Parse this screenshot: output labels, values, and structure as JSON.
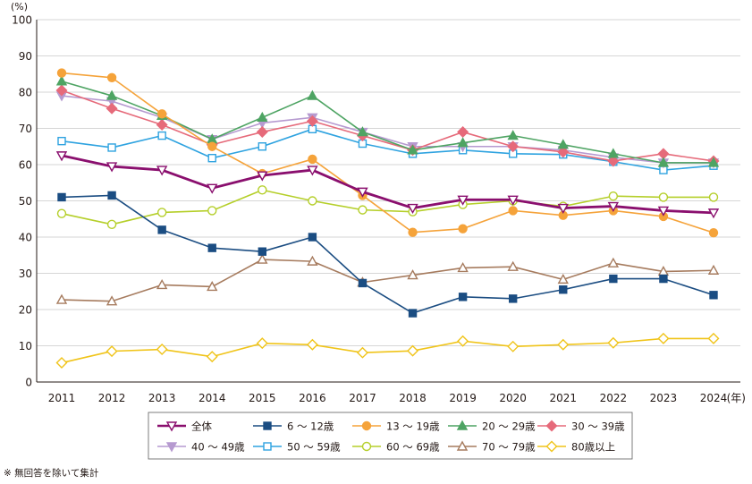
{
  "chart_data": {
    "type": "line",
    "title": "",
    "y_unit": "(%)",
    "x_unit": "(年)",
    "ylim": [
      0,
      100
    ],
    "yticks": [
      0,
      10,
      20,
      30,
      40,
      50,
      60,
      70,
      80,
      90,
      100
    ],
    "grid": "horizontal",
    "legend_position": "bottom",
    "categories": [
      "2011",
      "2012",
      "2013",
      "2014",
      "2015",
      "2016",
      "2017",
      "2018",
      "2019",
      "2020",
      "2021",
      "2022",
      "2023",
      "2024"
    ],
    "series": [
      {
        "name": "全体",
        "color": "#8a0f6e",
        "marker": "triangle-down",
        "filled": false,
        "values": [
          62.5,
          59.5,
          58.5,
          53.5,
          57.0,
          58.5,
          52.5,
          48.0,
          50.3,
          50.3,
          48.0,
          48.5,
          47.3,
          46.7
        ]
      },
      {
        "name": "6 ～ 12歳",
        "color": "#1b4d82",
        "marker": "square",
        "filled": true,
        "values": [
          51.0,
          51.5,
          42.0,
          37.0,
          36.0,
          40.0,
          27.3,
          19.0,
          23.5,
          23.0,
          25.5,
          28.5,
          28.5,
          24.0
        ]
      },
      {
        "name": "13 ～ 19歳",
        "color": "#f5a33a",
        "marker": "circle",
        "filled": true,
        "values": [
          85.3,
          84.0,
          74.0,
          65.0,
          57.5,
          61.5,
          51.5,
          41.3,
          42.3,
          47.3,
          46.0,
          47.3,
          45.7,
          41.2
        ]
      },
      {
        "name": "20 ～ 29歳",
        "color": "#4ea463",
        "marker": "triangle-up",
        "filled": true,
        "values": [
          83.0,
          79.0,
          73.5,
          67.0,
          73.0,
          79.0,
          69.0,
          64.0,
          66.0,
          68.0,
          65.5,
          63.0,
          60.5,
          60.5
        ]
      },
      {
        "name": "30 ～ 39歳",
        "color": "#e66a7a",
        "marker": "diamond",
        "filled": true,
        "values": [
          80.5,
          75.5,
          71.0,
          65.5,
          69.0,
          72.0,
          68.0,
          64.0,
          69.0,
          65.0,
          63.5,
          61.0,
          63.0,
          61.0
        ]
      },
      {
        "name": "40 ～ 49歳",
        "color": "#b69ad0",
        "marker": "triangle-down",
        "filled": true,
        "values": [
          79.0,
          77.5,
          73.0,
          67.0,
          71.5,
          73.0,
          69.0,
          65.0,
          65.0,
          65.0,
          64.0,
          62.0,
          60.5,
          60.5
        ]
      },
      {
        "name": "50 ～ 59歳",
        "color": "#2fa3e0",
        "marker": "square",
        "filled": false,
        "values": [
          66.5,
          64.7,
          68.0,
          61.8,
          65.0,
          69.8,
          65.8,
          63.0,
          64.0,
          63.0,
          62.8,
          60.8,
          58.5,
          59.7
        ]
      },
      {
        "name": "60 ～ 69歳",
        "color": "#b5cf2a",
        "marker": "circle",
        "filled": false,
        "values": [
          46.5,
          43.5,
          46.8,
          47.3,
          53.0,
          50.0,
          47.5,
          47.0,
          49.0,
          50.0,
          48.5,
          51.3,
          51.0,
          51.0
        ]
      },
      {
        "name": "70 ～ 79歳",
        "color": "#a67b5e",
        "marker": "triangle-up",
        "filled": false,
        "values": [
          22.7,
          22.3,
          26.8,
          26.3,
          33.8,
          33.3,
          27.5,
          29.5,
          31.5,
          31.8,
          28.3,
          32.8,
          30.5,
          30.8
        ]
      },
      {
        "name": "80歳以上",
        "color": "#f0c419",
        "marker": "diamond",
        "filled": false,
        "values": [
          5.3,
          8.5,
          9.0,
          7.0,
          10.7,
          10.3,
          8.1,
          8.6,
          11.3,
          9.8,
          10.3,
          10.8,
          12.0,
          12.0
        ]
      }
    ]
  },
  "note": "※ 無回答を除いて集計"
}
